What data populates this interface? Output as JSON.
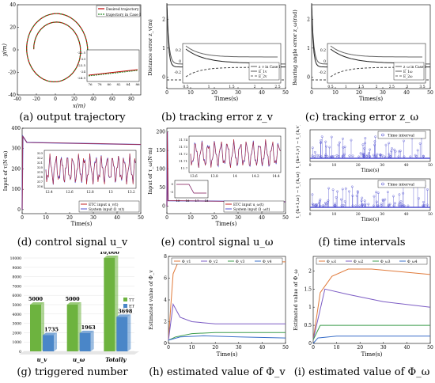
{
  "captions": [
    "(a) output trajectory",
    "(b) tracking error z_v",
    "(c) tracking error z_ω",
    "(d) control signal u_v",
    "(e) control signal u_ω",
    "(f) time intervals",
    "(g) triggered number",
    "(h) estimated value of Φ_v",
    "(i) estimated value of Φ_ω"
  ],
  "colors": {
    "desired": "#c00000",
    "case": "#2a8c2a",
    "etc": "#c02020",
    "sys": "#5050d0",
    "tt": "#6db33f",
    "et": "#4a86c8",
    "phi1": "#7c5cc4",
    "phi2": "#e07a3a",
    "phi3": "#3c9c4c",
    "phi4": "#3a6fc8"
  },
  "chart_data": [
    {
      "id": "a",
      "type": "line",
      "xlabel": "x(m)",
      "ylabel": "y(m)",
      "xlim": [
        -40,
        90
      ],
      "ylim": [
        -40,
        40
      ],
      "xticks": [
        -40,
        -20,
        0,
        20,
        40,
        60,
        80
      ],
      "yticks": [
        -40,
        -20,
        0,
        20,
        40
      ],
      "legend": [
        "Desired trajectory",
        "trajectory in Case I"
      ],
      "inset": {
        "xticks": [
          76,
          78,
          80,
          82,
          84,
          86
        ],
        "yticks": [
          -22.5,
          -23,
          -23.5,
          -24,
          -24.5
        ]
      }
    },
    {
      "id": "b",
      "type": "line",
      "xlabel": "Times(s)",
      "ylabel": "Distance error z_v(m)",
      "xlim": [
        0,
        50
      ],
      "xticks": [
        0,
        10,
        20,
        30,
        40,
        50
      ],
      "yticks": [
        0,
        1,
        2
      ],
      "inset": {
        "legend": [
          "z_v in Case I",
          "E_1v",
          "E_2v"
        ],
        "xticks": [
          0.5,
          1,
          1.5,
          2,
          2.5
        ],
        "yticks": [
          0.2,
          0,
          -0.2
        ]
      }
    },
    {
      "id": "c",
      "type": "line",
      "xlabel": "Times(s)",
      "ylabel": "Bearing angle error z_ω(rad)",
      "xlim": [
        0,
        50
      ],
      "xticks": [
        0,
        10,
        20,
        30,
        40,
        50
      ],
      "yticks": [
        0,
        1,
        2
      ],
      "inset": {
        "legend": [
          "z_ω in Case I",
          "E_1ω",
          "E_2ω"
        ],
        "xticks": [
          0.5,
          1,
          1.5,
          2,
          2.5,
          3,
          3.5
        ],
        "yticks": [
          0.2,
          0,
          -0.2
        ]
      }
    },
    {
      "id": "d",
      "type": "line",
      "xlabel": "Time(s)",
      "ylabel": "Input of τ(N·m)",
      "xlim": [
        0,
        50
      ],
      "xticks": [
        0,
        10,
        20,
        30,
        40,
        50
      ],
      "yticks": [
        0,
        100,
        200,
        300,
        400
      ],
      "legend": [
        "ETC input u_v(t)",
        "System input Ω_v(t)"
      ],
      "inset": {
        "xticks": [
          12.4,
          12.6,
          12.8,
          13,
          13.2
        ],
        "yticks": [
          323,
          322,
          321,
          320,
          319,
          318,
          317,
          316
        ]
      }
    },
    {
      "id": "e",
      "type": "line",
      "xlabel": "Time(s)",
      "ylabel": "Input of τ_ω(N·m)",
      "xlim": [
        0,
        50
      ],
      "xticks": [
        0,
        10,
        20,
        30,
        40,
        50
      ],
      "yticks": [
        0,
        50,
        100,
        150,
        200
      ],
      "legend": [
        "ETC input u_ω(t)",
        "System input Ω_ω(t)"
      ],
      "inset": {
        "xticks": [
          13.6,
          13.8,
          14,
          14.2,
          14.4
        ],
        "yticks": [
          11.74,
          11.73,
          11.72,
          11.71,
          11.7
        ]
      },
      "inset2": {
        "xticks": [
          15,
          16,
          17,
          18
        ],
        "yticks": [
          0,
          -5
        ]
      }
    },
    {
      "id": "f",
      "type": "scatter",
      "subplots": [
        {
          "ylabel": "t_{k+1,v} − t_{k,v}",
          "xlabel": "Time(s)",
          "legend": [
            "Time interval"
          ],
          "xticks": [
            0,
            10,
            20,
            30,
            40,
            50
          ]
        },
        {
          "ylabel": "t_{k+1,ω} − t_{k,ω}",
          "xlabel": "Time(s)",
          "legend": [
            "Time interval"
          ],
          "xticks": [
            0,
            10,
            20,
            30,
            40,
            50
          ]
        }
      ]
    },
    {
      "id": "g",
      "type": "bar",
      "categories": [
        "u_v",
        "u_ω",
        "Totally"
      ],
      "series": [
        {
          "name": "TT",
          "values": [
            5000,
            5000,
            10000
          ]
        },
        {
          "name": "ET",
          "values": [
            1735,
            1963,
            3698
          ]
        }
      ],
      "value_labels": [
        [
          "5000",
          "5000",
          "10,000"
        ],
        [
          "1735",
          "1963",
          "3698"
        ]
      ],
      "ylim": [
        0,
        10000
      ],
      "yticks": [
        0,
        1000,
        2000,
        3000,
        4000,
        5000,
        6000,
        7000,
        8000,
        9000,
        10000
      ]
    },
    {
      "id": "h",
      "type": "line",
      "xlabel": "Time(s)",
      "ylabel": "Estimated value of Φ_v",
      "xlim": [
        0,
        50
      ],
      "ylim": [
        0,
        8
      ],
      "xticks": [
        0,
        10,
        20,
        30,
        40,
        50
      ],
      "yticks": [
        0,
        2,
        4,
        6,
        8
      ],
      "legend": [
        "Φ_v1",
        "Φ_v2",
        "Φ_v3",
        "Φ_v4"
      ],
      "series": [
        {
          "name": "Φ_v1",
          "x": [
            0,
            1,
            2,
            4,
            6,
            50
          ],
          "y": [
            0.3,
            3.5,
            6.4,
            7.4,
            7.5,
            7.5
          ]
        },
        {
          "name": "Φ_v2",
          "x": [
            0,
            2,
            5,
            10,
            20,
            30,
            50
          ],
          "y": [
            0.3,
            3.6,
            2.4,
            2.0,
            1.8,
            1.8,
            1.8
          ]
        },
        {
          "name": "Φ_v3",
          "x": [
            0,
            3,
            10,
            20,
            50
          ],
          "y": [
            0.3,
            0.6,
            0.9,
            1.0,
            1.0
          ]
        },
        {
          "name": "Φ_v4",
          "x": [
            0,
            5,
            15,
            30,
            50
          ],
          "y": [
            0.3,
            0.6,
            0.7,
            0.6,
            0.5
          ]
        }
      ]
    },
    {
      "id": "i",
      "type": "line",
      "xlabel": "Time(s)",
      "ylabel": "Estimated value of Φ_ω",
      "xlim": [
        0,
        50
      ],
      "ylim": [
        0,
        2.4
      ],
      "xticks": [
        0,
        10,
        20,
        30,
        40,
        50
      ],
      "yticks": [
        0,
        0.5,
        1,
        1.5,
        2
      ],
      "legend": [
        "Φ_ω1",
        "Φ_ω2",
        "Φ_ω3",
        "Φ_ω4"
      ],
      "series": [
        {
          "name": "Φ_ω1",
          "x": [
            0,
            3,
            8,
            15,
            25,
            50
          ],
          "y": [
            0.1,
            1.4,
            1.85,
            2.05,
            2.05,
            1.9
          ]
        },
        {
          "name": "Φ_ω2",
          "x": [
            0,
            5,
            15,
            30,
            50
          ],
          "y": [
            0.1,
            1.5,
            1.35,
            1.15,
            1.0
          ]
        },
        {
          "name": "Φ_ω3",
          "x": [
            0,
            3,
            10,
            50
          ],
          "y": [
            0.1,
            0.5,
            0.5,
            0.5
          ]
        },
        {
          "name": "Φ_ω4",
          "x": [
            0,
            2,
            10,
            50
          ],
          "y": [
            0.0,
            0.15,
            0.2,
            0.2
          ]
        }
      ]
    }
  ]
}
